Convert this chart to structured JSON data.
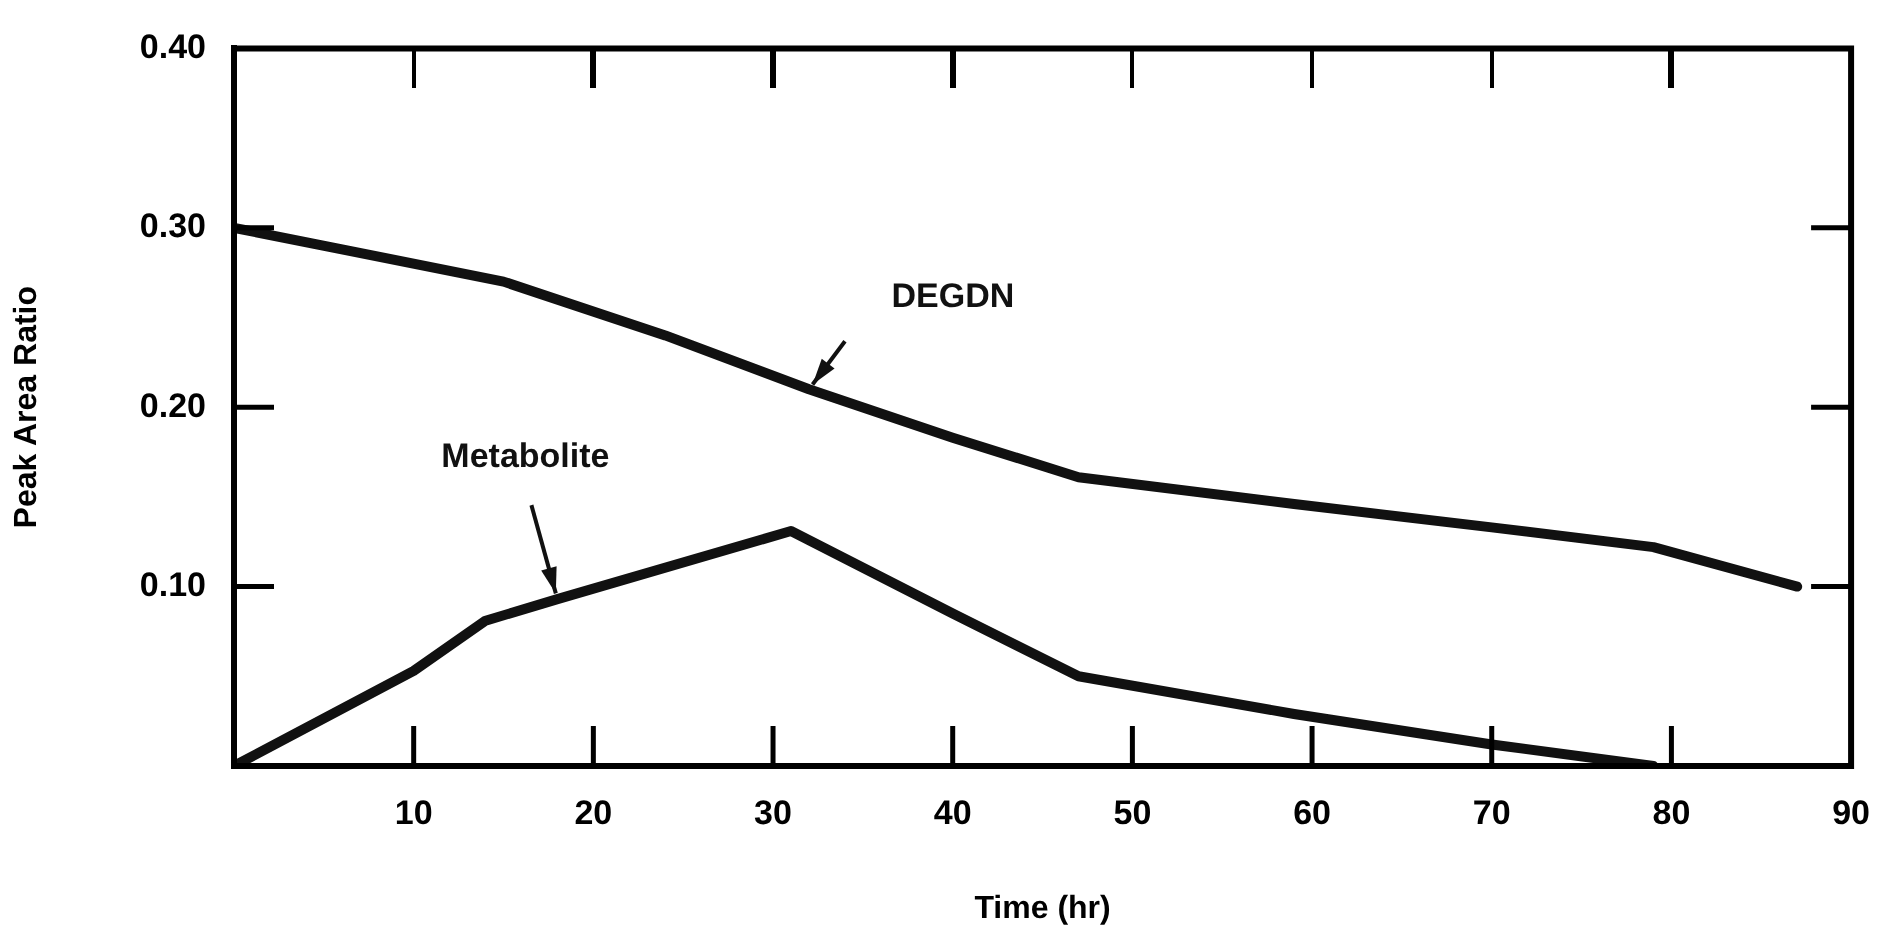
{
  "chart_data": {
    "type": "line",
    "xlabel": "Time (hr)",
    "ylabel": "Peak Area Ratio",
    "xlim": [
      0,
      90
    ],
    "xticks": [
      {
        "value": 0,
        "label": null
      },
      10,
      20,
      30,
      40,
      50,
      60,
      70,
      80,
      90
    ],
    "ylim": [
      0,
      0.4
    ],
    "yticks": [
      {
        "value": 0,
        "label": null
      },
      {
        "value": 0.1,
        "label": "0.10"
      },
      {
        "value": 0.2,
        "label": "0.20"
      },
      {
        "value": 0.3,
        "label": "0.30"
      },
      {
        "value": 0.4,
        "label": "0.40"
      }
    ],
    "series": [
      {
        "name": "DEGDN",
        "color": "#111111",
        "x": [
          0,
          15,
          24,
          32,
          40,
          47,
          59,
          70,
          79,
          87
        ],
        "values": [
          0.3,
          0.27,
          0.24,
          0.21,
          0.183,
          0.161,
          0.146,
          0.133,
          0.122,
          0.1
        ]
      },
      {
        "name": "Metabolite",
        "color": "#111111",
        "x": [
          0,
          10,
          14,
          18,
          31,
          40,
          47,
          59,
          70,
          79
        ],
        "values": [
          0,
          0.053,
          0.081,
          0.093,
          0.131,
          0.085,
          0.05,
          0.029,
          0.012,
          0
        ]
      }
    ]
  }
}
